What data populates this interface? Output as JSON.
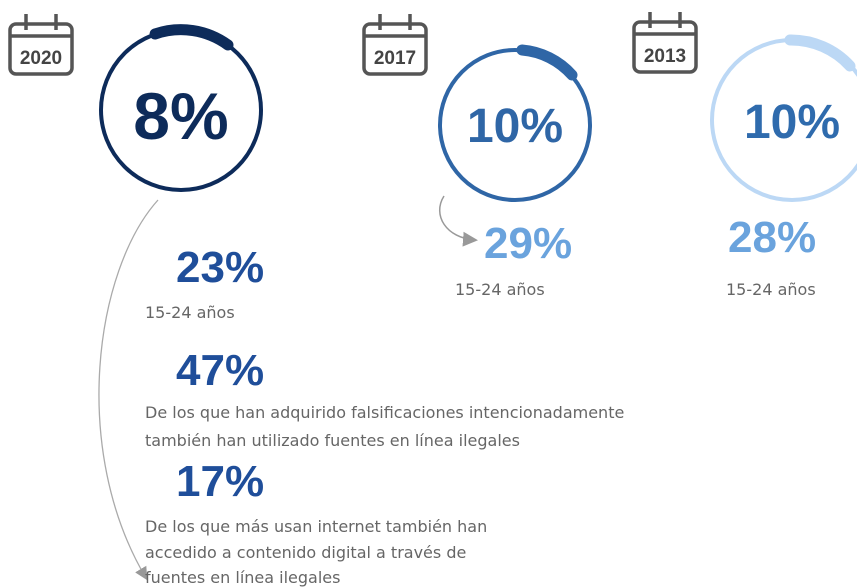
{
  "years": [
    {
      "year": "2020",
      "main": "8%",
      "youth": "23%",
      "youth_label": "15-24 años"
    },
    {
      "year": "2017",
      "main": "10%",
      "youth": "29%",
      "youth_label": "15-24 años"
    },
    {
      "year": "2013",
      "main": "10%",
      "youth": "28%",
      "youth_label": "15-24 años"
    }
  ],
  "facts": [
    {
      "value": "47%",
      "lines": [
        "De los que han adquirido falsificaciones intencionadamente",
        "también han utilizado fuentes en línea ilegales"
      ]
    },
    {
      "value": "17%",
      "lines": [
        "De los que más usan internet también han",
        "accedido a contenido digital a través de",
        "fuentes en línea ilegales"
      ]
    }
  ]
}
